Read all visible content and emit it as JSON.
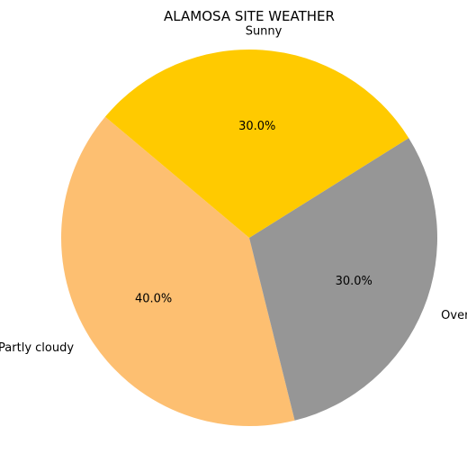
{
  "chart_data": {
    "type": "pie",
    "title": "ALAMOSA SITE WEATHER",
    "slices": [
      {
        "label": "Partly cloudy",
        "value": 40.0,
        "pct_label": "40.0%",
        "color": "#fdbf71"
      },
      {
        "label": "Overcast",
        "value": 30.0,
        "pct_label": "30.0%",
        "color": "#969696"
      },
      {
        "label": "Sunny",
        "value": 30.0,
        "pct_label": "30.0%",
        "color": "#ffca00"
      }
    ],
    "start_angle_deg": 140,
    "direction": "counterclockwise"
  }
}
